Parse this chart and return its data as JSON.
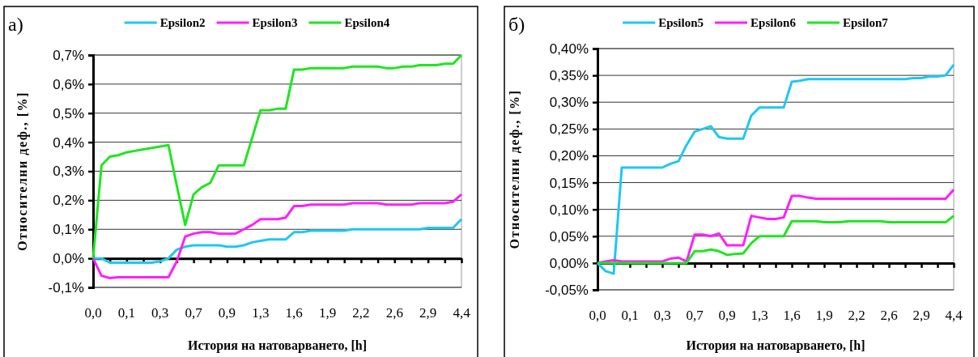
{
  "chart_data": [
    {
      "type": "line",
      "title": "а)",
      "xlabel": "История на натоварването, [h]",
      "ylabel": "Относителни деф., [%]",
      "legend": "top",
      "grid": "y",
      "categories": [
        "0,0",
        null,
        null,
        null,
        "0,1",
        null,
        null,
        null,
        "0,3",
        null,
        null,
        null,
        "0,7",
        null,
        null,
        null,
        "0,9",
        null,
        null,
        null,
        "1,3",
        null,
        null,
        null,
        "1,6",
        null,
        null,
        null,
        "1,9",
        null,
        null,
        null,
        "2,2",
        null,
        null,
        null,
        "2,6",
        null,
        null,
        null,
        "2,9",
        null,
        null,
        null,
        "4,4"
      ],
      "ylim": [
        -0.1,
        0.7
      ],
      "yticks": [
        {
          "value": -0.1,
          "label": "-0,1%"
        },
        {
          "value": 0,
          "label": "0,0%"
        },
        {
          "value": 0.1,
          "label": "0,1%"
        },
        {
          "value": 0.2,
          "label": "0,2%"
        },
        {
          "value": 0.3,
          "label": "0,3%"
        },
        {
          "value": 0.4,
          "label": "0,4%"
        },
        {
          "value": 0.5,
          "label": "0,5%"
        },
        {
          "value": 0.6,
          "label": "0,6%"
        },
        {
          "value": 0.7,
          "label": "0,7%"
        }
      ],
      "series": [
        {
          "name": "Epsilon2",
          "color": "#1ec8f0",
          "values": [
            0,
            0,
            -0.015,
            -0.015,
            -0.015,
            -0.015,
            -0.015,
            -0.015,
            -0.01,
            0,
            0.03,
            0.04,
            0.045,
            0.045,
            0.045,
            0.045,
            0.04,
            0.04,
            0.045,
            0.055,
            0.06,
            0.065,
            0.065,
            0.065,
            0.09,
            0.09,
            0.095,
            0.095,
            0.095,
            0.095,
            0.095,
            0.1,
            0.1,
            0.1,
            0.1,
            0.1,
            0.1,
            0.1,
            0.1,
            0.1,
            0.105,
            0.105,
            0.105,
            0.105,
            0.135
          ]
        },
        {
          "name": "Epsilon3",
          "color": "#ff1eff",
          "values": [
            0,
            -0.06,
            -0.068,
            -0.065,
            -0.065,
            -0.065,
            -0.065,
            -0.065,
            -0.065,
            -0.065,
            -0.01,
            0.075,
            0.085,
            0.09,
            0.09,
            0.085,
            0.085,
            0.085,
            0.1,
            0.115,
            0.135,
            0.135,
            0.135,
            0.14,
            0.18,
            0.18,
            0.185,
            0.185,
            0.185,
            0.185,
            0.185,
            0.19,
            0.19,
            0.19,
            0.19,
            0.185,
            0.185,
            0.185,
            0.185,
            0.19,
            0.19,
            0.19,
            0.19,
            0.195,
            0.22
          ]
        },
        {
          "name": "Epsilon4",
          "color": "#1ee61e",
          "values": [
            0,
            0.32,
            0.35,
            0.355,
            0.365,
            0.37,
            0.375,
            0.38,
            0.385,
            0.39,
            0.25,
            0.115,
            0.22,
            0.245,
            0.26,
            0.32,
            0.32,
            0.32,
            0.32,
            0.415,
            0.51,
            0.51,
            0.515,
            0.515,
            0.65,
            0.65,
            0.655,
            0.655,
            0.655,
            0.655,
            0.655,
            0.66,
            0.66,
            0.66,
            0.66,
            0.655,
            0.655,
            0.66,
            0.66,
            0.665,
            0.665,
            0.665,
            0.67,
            0.67,
            0.7
          ]
        }
      ]
    },
    {
      "type": "line",
      "title": "б)",
      "xlabel": "История на натоварването, [h]",
      "ylabel": "Относителни деф., [%]",
      "legend": "top",
      "grid": "y",
      "categories": [
        "0,0",
        null,
        null,
        null,
        "0,1",
        null,
        null,
        null,
        "0,3",
        null,
        null,
        null,
        "0,7",
        null,
        null,
        null,
        "0,9",
        null,
        null,
        null,
        "1,3",
        null,
        null,
        null,
        "1,6",
        null,
        null,
        null,
        "1,9",
        null,
        null,
        null,
        "2,2",
        null,
        null,
        null,
        "2,6",
        null,
        null,
        null,
        "2,9",
        null,
        null,
        null,
        "4,4"
      ],
      "ylim": [
        -0.05,
        0.4
      ],
      "yticks": [
        {
          "value": -0.05,
          "label": "-0,05%"
        },
        {
          "value": 0,
          "label": "0,00%"
        },
        {
          "value": 0.05,
          "label": "0,05%"
        },
        {
          "value": 0.1,
          "label": "0,10%"
        },
        {
          "value": 0.15,
          "label": "0,15%"
        },
        {
          "value": 0.2,
          "label": "0,20%"
        },
        {
          "value": 0.25,
          "label": "0,25%"
        },
        {
          "value": 0.3,
          "label": "0,30%"
        },
        {
          "value": 0.35,
          "label": "0,35%"
        },
        {
          "value": 0.4,
          "label": "0,40%"
        }
      ],
      "series": [
        {
          "name": "Epsilon5",
          "color": "#1ec8f0",
          "values": [
            0,
            -0.015,
            -0.02,
            0.178,
            0.178,
            0.178,
            0.178,
            0.178,
            0.178,
            0.185,
            0.19,
            0.22,
            0.245,
            0.25,
            0.255,
            0.235,
            0.232,
            0.232,
            0.232,
            0.275,
            0.29,
            0.29,
            0.29,
            0.29,
            0.338,
            0.34,
            0.343,
            0.343,
            0.343,
            0.343,
            0.343,
            0.343,
            0.343,
            0.343,
            0.343,
            0.343,
            0.343,
            0.343,
            0.343,
            0.345,
            0.345,
            0.348,
            0.348,
            0.35,
            0.37
          ]
        },
        {
          "name": "Epsilon6",
          "color": "#ff1eff",
          "values": [
            0,
            0.003,
            0.005,
            0.003,
            0.003,
            0.003,
            0.003,
            0.003,
            0.003,
            0.008,
            0.01,
            0.003,
            0.053,
            0.053,
            0.05,
            0.055,
            0.033,
            0.033,
            0.033,
            0.088,
            0.085,
            0.082,
            0.082,
            0.085,
            0.125,
            0.125,
            0.122,
            0.12,
            0.12,
            0.12,
            0.12,
            0.12,
            0.12,
            0.12,
            0.12,
            0.12,
            0.12,
            0.12,
            0.12,
            0.12,
            0.12,
            0.12,
            0.12,
            0.12,
            0.137
          ]
        },
        {
          "name": "Epsilon7",
          "color": "#1ee61e",
          "values": [
            0,
            0,
            0,
            0,
            0,
            0,
            0,
            0,
            0,
            0,
            0,
            0,
            0.022,
            0.022,
            0.025,
            0.022,
            0.015,
            0.017,
            0.018,
            0.037,
            0.05,
            0.05,
            0.05,
            0.05,
            0.078,
            0.078,
            0.078,
            0.078,
            0.076,
            0.076,
            0.076,
            0.078,
            0.078,
            0.078,
            0.078,
            0.078,
            0.076,
            0.076,
            0.076,
            0.076,
            0.076,
            0.076,
            0.076,
            0.076,
            0.088
          ]
        }
      ]
    }
  ]
}
